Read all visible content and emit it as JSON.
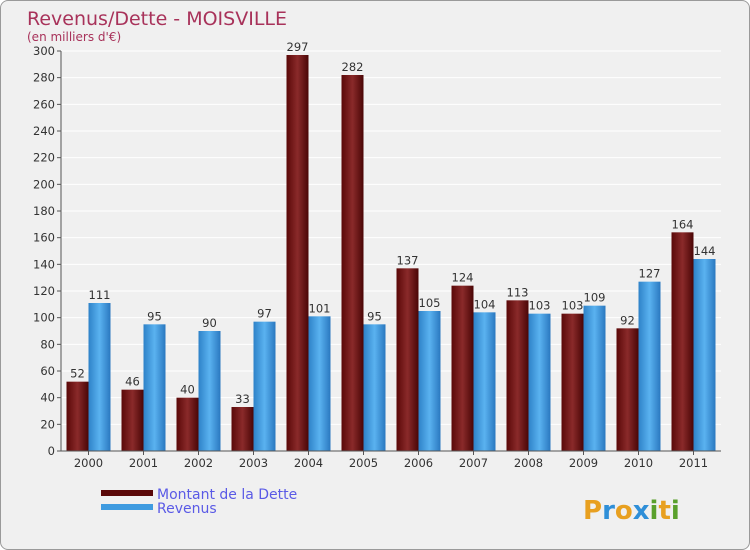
{
  "chart_data": {
    "type": "bar",
    "title": "Revenus/Dette - MOISVILLE",
    "subtitle": "(en milliers d'€)",
    "categories": [
      "2000",
      "2001",
      "2002",
      "2003",
      "2004",
      "2005",
      "2006",
      "2007",
      "2008",
      "2009",
      "2010",
      "2011"
    ],
    "series": [
      {
        "name": "Montant de la Dette",
        "color": "#7a1a1a",
        "values": [
          52,
          46,
          40,
          33,
          297,
          282,
          137,
          124,
          113,
          103,
          92,
          164
        ]
      },
      {
        "name": "Revenus",
        "color": "#3f9be0",
        "values": [
          111,
          95,
          90,
          97,
          101,
          95,
          105,
          104,
          103,
          109,
          127,
          144
        ]
      }
    ],
    "ylim": [
      0,
      300
    ],
    "yticks": [
      0,
      20,
      40,
      60,
      80,
      100,
      120,
      140,
      160,
      180,
      200,
      220,
      240,
      260,
      280,
      300
    ],
    "grid": true,
    "legend": "bottom-left"
  },
  "logo": {
    "text": "Proxiti",
    "letters": [
      "P",
      "r",
      "o",
      "x",
      "i",
      "t",
      "i"
    ],
    "colors": [
      "#e8a020",
      "#2f8fd8",
      "#e8a020",
      "#2f8fd8",
      "#5aa02c",
      "#e8a020",
      "#5aa02c"
    ]
  }
}
